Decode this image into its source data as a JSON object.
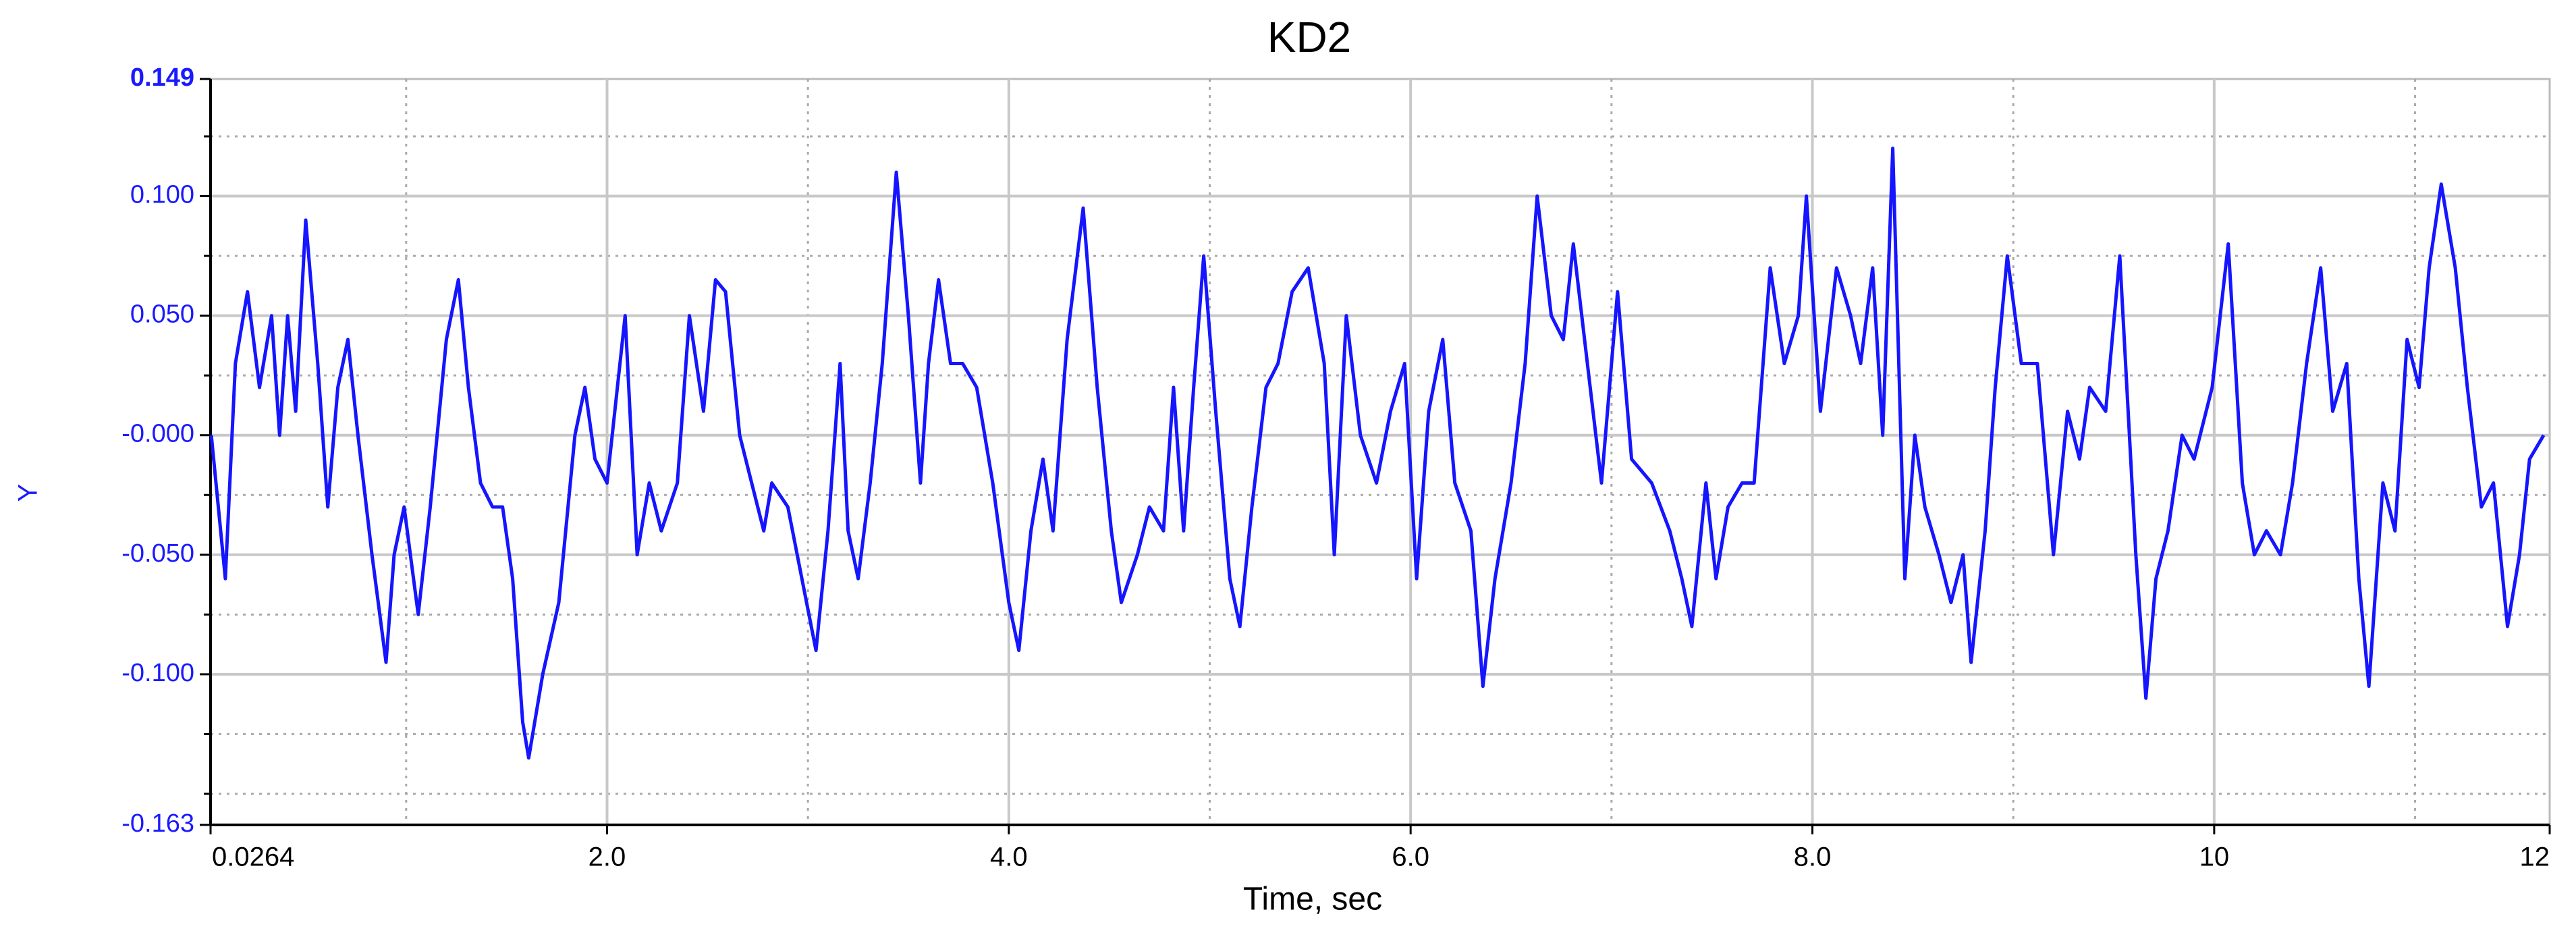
{
  "chart_data": {
    "type": "line",
    "title": "KD2",
    "x_label": "Time, sec",
    "y_label": "Y",
    "color": "#1515ff",
    "grid": true,
    "xlim": [
      0.0264,
      11.67
    ],
    "ylim": [
      -0.163,
      0.149
    ],
    "xticks": [
      0.0264,
      {
        "value": 2,
        "label": "2.0"
      },
      {
        "value": 4,
        "label": "4.0"
      },
      {
        "value": 6,
        "label": "6.0"
      },
      {
        "value": 8,
        "label": "8.0"
      },
      10,
      {
        "value": 11.67,
        "label": "12"
      }
    ],
    "xminorticks": [
      1,
      3,
      5,
      7,
      9,
      11
    ],
    "yticks": [
      {
        "value": 0.149,
        "label": "0.149"
      },
      {
        "value": 0.1,
        "label": "0.100"
      },
      {
        "value": 0.05,
        "label": "0.050"
      },
      {
        "value": 0,
        "label": "-0.000"
      },
      {
        "value": -0.05,
        "label": "-0.050"
      },
      {
        "value": -0.1,
        "label": "-0.100"
      },
      {
        "value": -0.163,
        "label": "-0.163"
      }
    ],
    "yminorticks": [
      0.125,
      0.075,
      0.025,
      -0.025,
      -0.075,
      -0.125,
      -0.15
    ],
    "x": [
      0.03,
      0.1,
      0.15,
      0.21,
      0.27,
      0.33,
      0.37,
      0.41,
      0.45,
      0.5,
      0.56,
      0.61,
      0.66,
      0.71,
      0.76,
      0.83,
      0.9,
      0.94,
      0.99,
      1.06,
      1.12,
      1.2,
      1.26,
      1.31,
      1.37,
      1.43,
      1.48,
      1.53,
      1.58,
      1.61,
      1.68,
      1.76,
      1.84,
      1.89,
      1.94,
      2.0,
      2.09,
      2.15,
      2.21,
      2.27,
      2.35,
      2.41,
      2.48,
      2.54,
      2.59,
      2.66,
      2.72,
      2.78,
      2.82,
      2.9,
      2.97,
      3.04,
      3.1,
      3.16,
      3.2,
      3.25,
      3.31,
      3.37,
      3.44,
      3.5,
      3.56,
      3.6,
      3.65,
      3.71,
      3.77,
      3.84,
      3.92,
      4.0,
      4.05,
      4.11,
      4.17,
      4.22,
      4.29,
      4.37,
      4.44,
      4.51,
      4.56,
      4.64,
      4.7,
      4.77,
      4.82,
      4.87,
      4.92,
      4.97,
      5.03,
      5.1,
      5.15,
      5.21,
      5.28,
      5.34,
      5.41,
      5.49,
      5.57,
      5.62,
      5.68,
      5.75,
      5.83,
      5.9,
      5.97,
      6.03,
      6.09,
      6.16,
      6.22,
      6.3,
      6.36,
      6.42,
      6.5,
      6.57,
      6.63,
      6.7,
      6.76,
      6.81,
      6.88,
      6.95,
      7.03,
      7.1,
      7.2,
      7.29,
      7.35,
      7.4,
      7.47,
      7.52,
      7.58,
      7.65,
      7.71,
      7.79,
      7.86,
      7.93,
      7.97,
      8.04,
      8.12,
      8.19,
      8.24,
      8.3,
      8.35,
      8.4,
      8.46,
      8.51,
      8.56,
      8.63,
      8.69,
      8.75,
      8.79,
      8.86,
      8.91,
      8.97,
      9.04,
      9.12,
      9.2,
      9.27,
      9.33,
      9.38,
      9.46,
      9.53,
      9.61,
      9.66,
      9.71,
      9.77,
      9.84,
      9.9,
      9.99,
      10.07,
      10.14,
      10.2,
      10.26,
      10.33,
      10.39,
      10.46,
      10.53,
      10.59,
      10.66,
      10.72,
      10.77,
      10.84,
      10.9,
      10.96,
      11.02,
      11.07,
      11.13,
      11.2,
      11.26,
      11.33,
      11.39,
      11.46,
      11.52,
      11.57,
      11.64
    ],
    "values": [
      0.0,
      -0.06,
      0.03,
      0.06,
      0.02,
      0.05,
      0.0,
      0.05,
      0.01,
      0.09,
      0.03,
      -0.03,
      0.02,
      0.04,
      0.0,
      -0.05,
      -0.095,
      -0.05,
      -0.03,
      -0.075,
      -0.03,
      0.04,
      0.065,
      0.02,
      -0.02,
      -0.03,
      -0.03,
      -0.06,
      -0.12,
      -0.135,
      -0.1,
      -0.07,
      0.0,
      0.02,
      -0.01,
      -0.02,
      0.05,
      -0.05,
      -0.02,
      -0.04,
      -0.02,
      0.05,
      0.01,
      0.065,
      0.06,
      0.0,
      -0.02,
      -0.04,
      -0.02,
      -0.03,
      -0.06,
      -0.09,
      -0.04,
      0.03,
      -0.04,
      -0.06,
      -0.02,
      0.03,
      0.11,
      0.05,
      -0.02,
      0.03,
      0.065,
      0.03,
      0.03,
      0.02,
      -0.02,
      -0.07,
      -0.09,
      -0.04,
      -0.01,
      -0.04,
      0.04,
      0.095,
      0.02,
      -0.04,
      -0.07,
      -0.05,
      -0.03,
      -0.04,
      0.02,
      -0.04,
      0.02,
      0.075,
      0.01,
      -0.06,
      -0.08,
      -0.03,
      0.02,
      0.03,
      0.06,
      0.07,
      0.03,
      -0.05,
      0.05,
      0.0,
      -0.02,
      0.01,
      0.03,
      -0.06,
      0.01,
      0.04,
      -0.02,
      -0.04,
      -0.105,
      -0.06,
      -0.02,
      0.03,
      0.1,
      0.05,
      0.04,
      0.08,
      0.03,
      -0.02,
      0.06,
      -0.01,
      -0.02,
      -0.04,
      -0.06,
      -0.08,
      -0.02,
      -0.06,
      -0.03,
      -0.02,
      -0.02,
      0.07,
      0.03,
      0.05,
      0.1,
      0.01,
      0.07,
      0.05,
      0.03,
      0.07,
      0.0,
      0.12,
      -0.06,
      0.0,
      -0.03,
      -0.05,
      -0.07,
      -0.05,
      -0.095,
      -0.04,
      0.02,
      0.075,
      0.03,
      0.03,
      -0.05,
      0.01,
      -0.01,
      0.02,
      0.01,
      0.075,
      -0.05,
      -0.11,
      -0.06,
      -0.04,
      0.0,
      -0.01,
      0.02,
      0.08,
      -0.02,
      -0.05,
      -0.04,
      -0.05,
      -0.02,
      0.03,
      0.07,
      0.01,
      0.03,
      -0.06,
      -0.105,
      -0.02,
      -0.04,
      0.04,
      0.02,
      0.07,
      0.105,
      0.07,
      0.02,
      -0.03,
      -0.02,
      -0.08,
      -0.05,
      -0.01,
      0.0
    ]
  }
}
